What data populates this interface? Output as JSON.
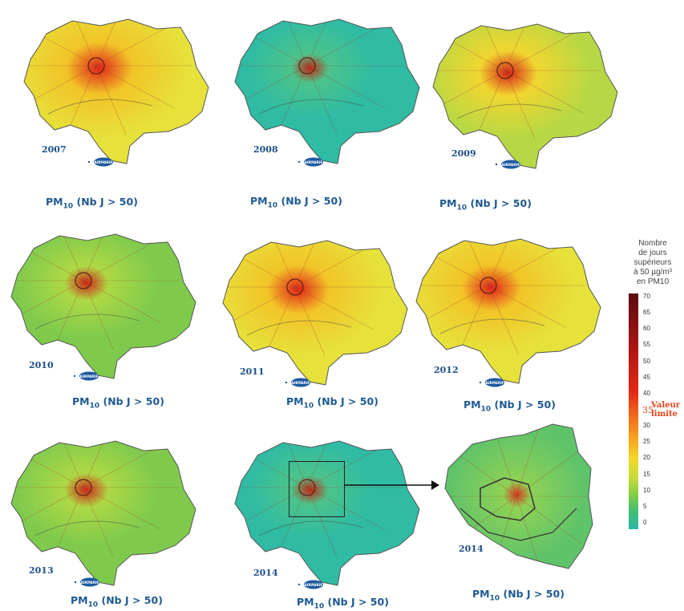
{
  "caption_text": "PM10 (Nb J > 50)",
  "caption_parts": {
    "pm": "PM",
    "sub": "10",
    "rest": " (Nb J > 50)"
  },
  "maps": [
    {
      "year": "2007",
      "level": 0.62,
      "palette": "yellow"
    },
    {
      "year": "2008",
      "level": 0.2,
      "palette": "teal"
    },
    {
      "year": "2009",
      "level": 0.5,
      "palette": "lime"
    },
    {
      "year": "2010",
      "level": 0.3,
      "palette": "green"
    },
    {
      "year": "2011",
      "level": 0.55,
      "palette": "yellow"
    },
    {
      "year": "2012",
      "level": 0.52,
      "palette": "yellow"
    },
    {
      "year": "2013",
      "level": 0.3,
      "palette": "green"
    },
    {
      "year": "2014",
      "level": 0.18,
      "palette": "teal"
    },
    {
      "year": "2014",
      "level": 0.25,
      "palette": "zoom"
    }
  ],
  "legend": {
    "title_lines": [
      "Nombre",
      "de jours",
      "supérieurs",
      "à 50 µg/m³",
      "en PM10"
    ],
    "ticks": [
      "70",
      "65",
      "60",
      "55",
      "50",
      "45",
      "40",
      "35",
      "30",
      "25",
      "20",
      "15",
      "10",
      "5",
      "0"
    ],
    "limit_value": "35",
    "limit_label_1": "Valeur",
    "limit_label_2": "limite"
  },
  "logo_text": "AIRPARIF",
  "colors": {
    "yellow": "#ebe53a",
    "teal": "#2dbaa3",
    "lime": "#b8d944",
    "green": "#84cb4c",
    "hotspot": "#c41b13",
    "caption": "#1f5a93"
  }
}
